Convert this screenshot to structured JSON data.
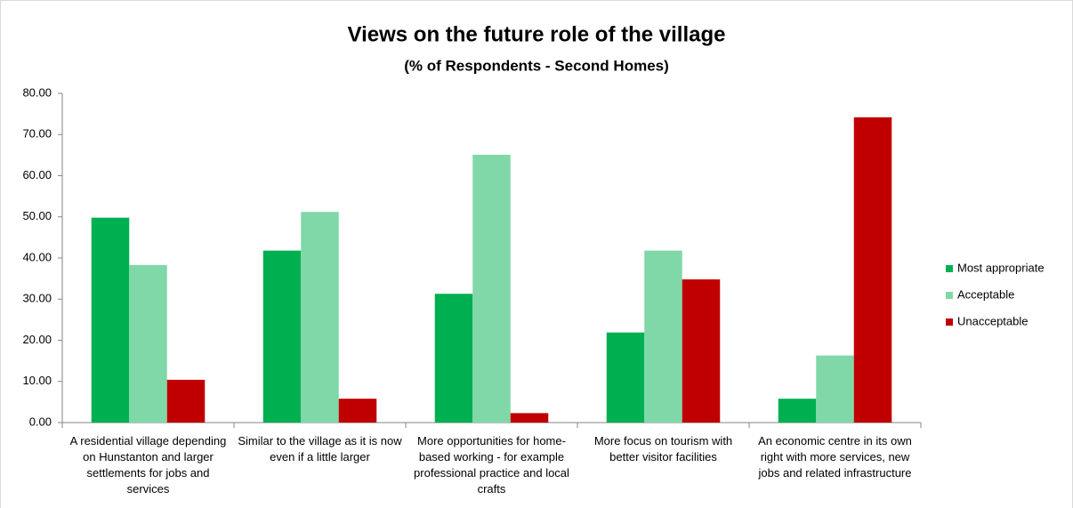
{
  "chart_data": {
    "type": "bar",
    "title": "Views on the future role of the village",
    "subtitle": "(%  of Respondents - Second Homes)",
    "categories": [
      "A residential village depending on Hunstanton and larger settlements for jobs and services",
      "Similar to the village as it is now even if a little larger",
      "More opportunities for home-based working - for example professional practice and local crafts",
      "More focus on tourism with better visitor facilities",
      "An economic centre in its own right with more services, new jobs and related infrastructure"
    ],
    "series": [
      {
        "name": "Most appropriate",
        "color": "#00b050",
        "values": [
          49.8,
          41.8,
          31.3,
          21.9,
          5.8
        ]
      },
      {
        "name": "Acceptable",
        "color": "#80d8a8",
        "values": [
          38.3,
          51.2,
          65.1,
          41.8,
          16.3
        ]
      },
      {
        "name": "Unacceptable",
        "color": "#c00000",
        "values": [
          10.4,
          5.8,
          2.3,
          34.8,
          74.2
        ]
      }
    ],
    "ylim": [
      0,
      80
    ],
    "yticks": [
      {
        "value": 0,
        "label": "0.00"
      },
      {
        "value": 10,
        "label": "10.00"
      },
      {
        "value": 20,
        "label": "20.00"
      },
      {
        "value": 30,
        "label": "30.00"
      },
      {
        "value": 40,
        "label": "40.00"
      },
      {
        "value": 50,
        "label": "50.00"
      },
      {
        "value": 60,
        "label": "60.00"
      },
      {
        "value": 70,
        "label": "70.00"
      },
      {
        "value": 80,
        "label": "80.00"
      }
    ],
    "grid": false,
    "legend": "right"
  }
}
